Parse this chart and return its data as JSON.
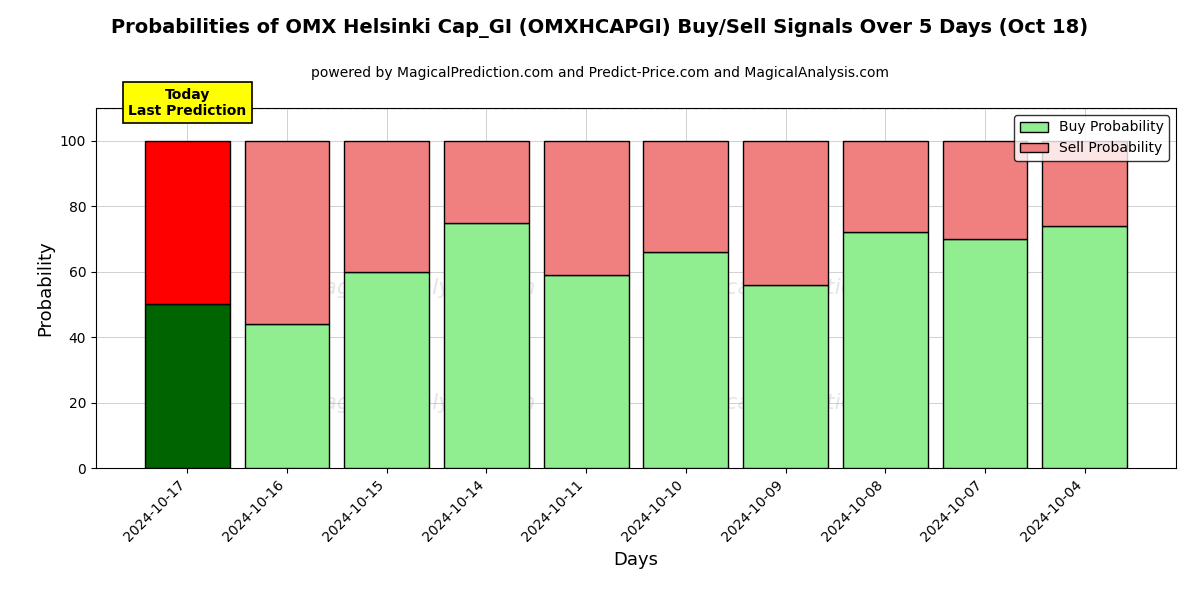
{
  "title": "Probabilities of OMX Helsinki Cap_GI (OMXHCAPGI) Buy/Sell Signals Over 5 Days (Oct 18)",
  "subtitle": "powered by MagicalPrediction.com and Predict-Price.com and MagicalAnalysis.com",
  "xlabel": "Days",
  "ylabel": "Probability",
  "dates": [
    "2024-10-17",
    "2024-10-16",
    "2024-10-15",
    "2024-10-14",
    "2024-10-11",
    "2024-10-10",
    "2024-10-09",
    "2024-10-08",
    "2024-10-07",
    "2024-10-04"
  ],
  "buy_values": [
    50,
    44,
    60,
    75,
    59,
    66,
    56,
    72,
    70,
    74
  ],
  "sell_values": [
    50,
    56,
    40,
    25,
    41,
    34,
    44,
    28,
    30,
    26
  ],
  "today_buy_color": "#006400",
  "today_sell_color": "#FF0000",
  "buy_color": "#90EE90",
  "sell_color": "#F08080",
  "today_annotation_bg": "#FFFF00",
  "today_annotation_text": "Today\nLast Prediction",
  "legend_buy_label": "Buy Probability",
  "legend_sell_label": "Sell Probability",
  "ylim": [
    0,
    110
  ],
  "yticks": [
    0,
    20,
    40,
    60,
    80,
    100
  ],
  "dashed_line_y": 110,
  "bar_edgecolor": "#000000",
  "bar_linewidth": 1.0,
  "figsize": [
    12.0,
    6.0
  ],
  "dpi": 100,
  "bar_width": 0.85
}
